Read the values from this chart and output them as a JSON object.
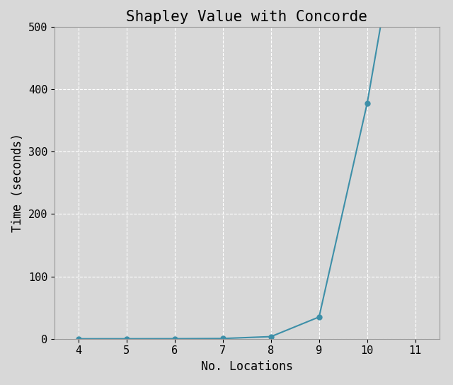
{
  "title": "Shapley Value with Concorde",
  "xlabel": "No. Locations",
  "ylabel": "Time (seconds)",
  "x_data": [
    4,
    5,
    6,
    7,
    8,
    9,
    10,
    10.5
  ],
  "y_data": [
    0.02,
    0.05,
    0.15,
    0.5,
    3.5,
    35,
    378,
    600
  ],
  "xlim": [
    3.5,
    11.5
  ],
  "ylim": [
    0,
    500
  ],
  "xticks": [
    4,
    5,
    6,
    7,
    8,
    9,
    10,
    11
  ],
  "yticks": [
    0,
    100,
    200,
    300,
    400,
    500
  ],
  "line_color": "#3d8fa8",
  "marker_color": "#3d8fa8",
  "marker_size": 5,
  "line_width": 1.5,
  "background_color": "#d8d8d8",
  "grid_color": "white",
  "title_fontsize": 15,
  "label_fontsize": 12,
  "tick_fontsize": 11,
  "font_family": "monospace"
}
